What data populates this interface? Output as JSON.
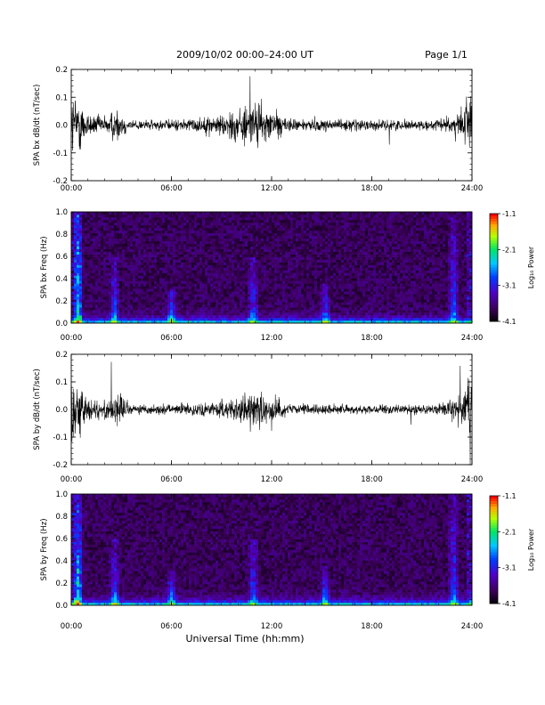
{
  "header": {
    "title": "2009/10/02  00:00–24:00 UT",
    "page": "Page 1/1"
  },
  "xlabel": "Universal Time (hh:mm)",
  "chart_data": [
    {
      "type": "line",
      "ylabel": "SPA bx dB/dt (nT/sec)",
      "xlim": [
        0,
        24
      ],
      "ylim": [
        -0.2,
        0.2
      ],
      "x_ticks": [
        "00:00",
        "06:00",
        "12:00",
        "18:00",
        "24:00"
      ],
      "y_ticks": [
        "0.2",
        "0.1",
        "0.0",
        "-0.1",
        "-0.2"
      ],
      "activity_profile": [
        {
          "t": 0.0,
          "amp": 0.2
        },
        {
          "t": 0.5,
          "amp": 0.16
        },
        {
          "t": 1.0,
          "amp": 0.07
        },
        {
          "t": 2.0,
          "amp": 0.05
        },
        {
          "t": 2.7,
          "amp": 0.1
        },
        {
          "t": 3.5,
          "amp": 0.03
        },
        {
          "t": 6.0,
          "amp": 0.03
        },
        {
          "t": 8.5,
          "amp": 0.05
        },
        {
          "t": 10.0,
          "amp": 0.1
        },
        {
          "t": 11.0,
          "amp": 0.13
        },
        {
          "t": 12.0,
          "amp": 0.1
        },
        {
          "t": 13.0,
          "amp": 0.04
        },
        {
          "t": 18.0,
          "amp": 0.03
        },
        {
          "t": 22.0,
          "amp": 0.03
        },
        {
          "t": 23.0,
          "amp": 0.07
        },
        {
          "t": 24.0,
          "amp": 0.2
        }
      ]
    },
    {
      "type": "heatmap",
      "ylabel": "SPA bx Freq (Hz)",
      "xlim": [
        0,
        24
      ],
      "ylim": [
        0.0,
        1.0
      ],
      "x_ticks": [
        "00:00",
        "06:00",
        "12:00",
        "18:00",
        "24:00"
      ],
      "y_ticks": [
        "1.0",
        "0.8",
        "0.6",
        "0.4",
        "0.2",
        "0.0"
      ],
      "colorbar": {
        "label": "Log₁₀ Power",
        "ticks": [
          "-1.1",
          "-2.1",
          "-3.1",
          "-4.1"
        ],
        "range": [
          -4.1,
          -1.1
        ]
      },
      "bright_bands": [
        {
          "t": 0.4,
          "fmax": 1.0
        },
        {
          "t": 2.6,
          "fmax": 0.6
        },
        {
          "t": 6.0,
          "fmax": 0.3
        },
        {
          "t": 10.9,
          "fmax": 0.6
        },
        {
          "t": 15.2,
          "fmax": 0.35
        },
        {
          "t": 22.9,
          "fmax": 1.0
        }
      ]
    },
    {
      "type": "line",
      "ylabel": "SPA by dB/dt (nT/sec)",
      "xlim": [
        0,
        24
      ],
      "ylim": [
        -0.2,
        0.2
      ],
      "x_ticks": [
        "00:00",
        "06:00",
        "12:00",
        "18:00",
        "24:00"
      ],
      "y_ticks": [
        "0.2",
        "0.1",
        "0.0",
        "-0.1",
        "-0.2"
      ],
      "activity_profile": [
        {
          "t": 0.0,
          "amp": 0.2
        },
        {
          "t": 0.5,
          "amp": 0.16
        },
        {
          "t": 1.0,
          "amp": 0.07
        },
        {
          "t": 2.0,
          "amp": 0.05
        },
        {
          "t": 2.7,
          "amp": 0.11
        },
        {
          "t": 3.5,
          "amp": 0.03
        },
        {
          "t": 6.0,
          "amp": 0.03
        },
        {
          "t": 8.5,
          "amp": 0.04
        },
        {
          "t": 10.0,
          "amp": 0.08
        },
        {
          "t": 11.0,
          "amp": 0.1
        },
        {
          "t": 12.0,
          "amp": 0.09
        },
        {
          "t": 13.0,
          "amp": 0.03
        },
        {
          "t": 18.0,
          "amp": 0.025
        },
        {
          "t": 22.0,
          "amp": 0.03
        },
        {
          "t": 23.0,
          "amp": 0.07
        },
        {
          "t": 24.0,
          "amp": 0.2
        }
      ]
    },
    {
      "type": "heatmap",
      "ylabel": "SPA by Freq (Hz)",
      "xlim": [
        0,
        24
      ],
      "ylim": [
        0.0,
        1.0
      ],
      "x_ticks": [
        "00:00",
        "06:00",
        "12:00",
        "18:00",
        "24:00"
      ],
      "y_ticks": [
        "1.0",
        "0.8",
        "0.6",
        "0.4",
        "0.2",
        "0.0"
      ],
      "colorbar": {
        "label": "Log₁₀ Power",
        "ticks": [
          "-1.1",
          "-2.1",
          "-3.1",
          "-4.1"
        ],
        "range": [
          -4.1,
          -1.1
        ]
      },
      "bright_bands": [
        {
          "t": 0.4,
          "fmax": 1.0
        },
        {
          "t": 2.6,
          "fmax": 0.6
        },
        {
          "t": 6.0,
          "fmax": 0.3
        },
        {
          "t": 10.9,
          "fmax": 0.6
        },
        {
          "t": 15.2,
          "fmax": 0.35
        },
        {
          "t": 22.9,
          "fmax": 1.0
        }
      ]
    }
  ]
}
